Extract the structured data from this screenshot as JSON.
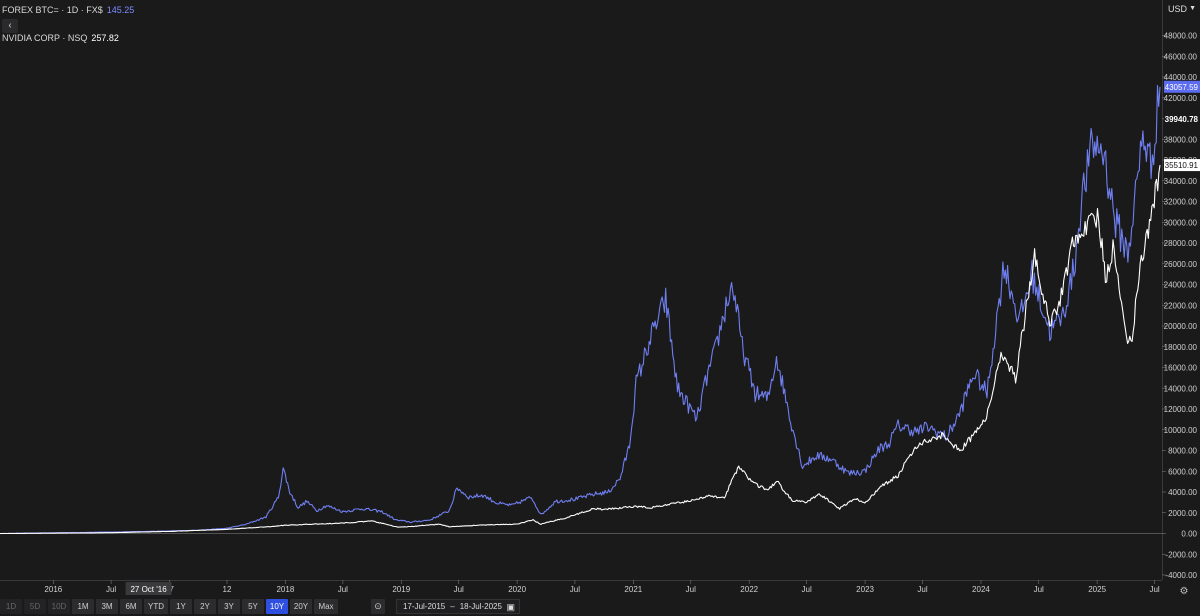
{
  "legend": {
    "btc": {
      "label": "FOREX BTC= · 1D · FX$",
      "value": "145.25"
    },
    "nvda": {
      "label": "NVIDIA CORP · NSQ",
      "value": "257.82"
    }
  },
  "collapse_icon": "‹",
  "currency": "USD",
  "toolbar": {
    "ranges": [
      "1D",
      "5D",
      "10D",
      "1M",
      "3M",
      "6M",
      "YTD",
      "1Y",
      "2Y",
      "3Y",
      "5Y",
      "10Y",
      "20Y",
      "Max"
    ],
    "disabled": [
      "1D",
      "5D",
      "10D"
    ],
    "active": "10Y",
    "date_from": "17-Jul-2015",
    "date_sep": "–",
    "date_to": "18-Jul-2025"
  },
  "colors": {
    "btc": "#6f7ff0",
    "nvda": "#ffffff",
    "background": "#1a1a1b",
    "active": "#2f4fe0"
  },
  "chart_data": {
    "type": "line",
    "ylim": [
      -4500,
      50000
    ],
    "y_ticks": [
      -4000,
      -2000,
      0,
      2000,
      4000,
      6000,
      8000,
      10000,
      12000,
      14000,
      16000,
      18000,
      20000,
      22000,
      24000,
      26000,
      28000,
      30000,
      32000,
      34000,
      36000,
      38000,
      40000,
      42000,
      44000,
      46000,
      48000
    ],
    "y_tick_labels": [
      "-4000.00",
      "-2000.00",
      "0.00",
      "2000.00",
      "4000.00",
      "6000.00",
      "8000.00",
      "10000.00",
      "12000.00",
      "14000.00",
      "16000.00",
      "18000.00",
      "20000.00",
      "22000.00",
      "24000.00",
      "26000.00",
      "28000.00",
      "30000.00",
      "32000.00",
      "34000.00",
      "36000.00",
      "38000.00",
      "40000.00",
      "42000.00",
      "44000.00",
      "46000.00",
      "48000.00"
    ],
    "x_range": [
      "2015-07-17",
      "2025-07-18"
    ],
    "x_ticks": [
      {
        "label": "2016",
        "date": "2016-01-01"
      },
      {
        "label": "Jul",
        "date": "2016-07-01"
      },
      {
        "label": "17",
        "date": "2017-01-01"
      },
      {
        "label": "12",
        "date": "2017-07-01"
      },
      {
        "label": "2018",
        "date": "2018-01-01"
      },
      {
        "label": "Jul",
        "date": "2018-07-01"
      },
      {
        "label": "2019",
        "date": "2019-01-01"
      },
      {
        "label": "Jul",
        "date": "2019-07-01"
      },
      {
        "label": "2020",
        "date": "2020-01-01"
      },
      {
        "label": "Jul",
        "date": "2020-07-01"
      },
      {
        "label": "2021",
        "date": "2021-01-01"
      },
      {
        "label": "Jul",
        "date": "2021-07-01"
      },
      {
        "label": "2022",
        "date": "2022-01-01"
      },
      {
        "label": "Jul",
        "date": "2022-07-01"
      },
      {
        "label": "2023",
        "date": "2023-01-01"
      },
      {
        "label": "Jul",
        "date": "2023-07-01"
      },
      {
        "label": "2024",
        "date": "2024-01-01"
      },
      {
        "label": "Jul",
        "date": "2024-07-01"
      },
      {
        "label": "2025",
        "date": "2025-01-01"
      },
      {
        "label": "Jul",
        "date": "2025-07-01"
      }
    ],
    "crosshair": {
      "label": "27 Oct '16",
      "date": "2016-10-27"
    },
    "price_tags": [
      {
        "value": 43057.59,
        "label": "43057.59",
        "series": "FOREX BTC="
      },
      {
        "value": 39940.78,
        "label": "39940.78",
        "series": ""
      },
      {
        "value": 35510.91,
        "label": "35510.91",
        "series": "NVIDIA CORP"
      }
    ],
    "series": [
      {
        "name": "FOREX BTC=",
        "color": "#6f7ff0",
        "points": [
          [
            "2015-07-17",
            0
          ],
          [
            "2016-01-01",
            70
          ],
          [
            "2016-07-01",
            140
          ],
          [
            "2017-01-01",
            240
          ],
          [
            "2017-04-01",
            320
          ],
          [
            "2017-07-01",
            500
          ],
          [
            "2017-09-01",
            900
          ],
          [
            "2017-11-01",
            1600
          ],
          [
            "2017-12-10",
            3500
          ],
          [
            "2017-12-25",
            6300
          ],
          [
            "2018-01-15",
            4000
          ],
          [
            "2018-02-10",
            2500
          ],
          [
            "2018-03-10",
            3100
          ],
          [
            "2018-04-10",
            2200
          ],
          [
            "2018-05-10",
            2700
          ],
          [
            "2018-07-01",
            2100
          ],
          [
            "2018-09-01",
            2400
          ],
          [
            "2018-11-01",
            2100
          ],
          [
            "2018-12-15",
            1300
          ],
          [
            "2019-02-01",
            1100
          ],
          [
            "2019-04-01",
            1300
          ],
          [
            "2019-06-01",
            2200
          ],
          [
            "2019-06-26",
            4400
          ],
          [
            "2019-08-01",
            3500
          ],
          [
            "2019-09-15",
            3700
          ],
          [
            "2019-11-01",
            2900
          ],
          [
            "2019-12-15",
            2700
          ],
          [
            "2020-02-15",
            3500
          ],
          [
            "2020-03-16",
            1800
          ],
          [
            "2020-05-01",
            3100
          ],
          [
            "2020-07-01",
            3300
          ],
          [
            "2020-09-01",
            3800
          ],
          [
            "2020-10-15",
            4000
          ],
          [
            "2020-11-20",
            5300
          ],
          [
            "2020-12-20",
            8500
          ],
          [
            "2021-01-10",
            14500
          ],
          [
            "2021-02-20",
            18500
          ],
          [
            "2021-04-13",
            22500
          ],
          [
            "2021-05-20",
            14000
          ],
          [
            "2021-07-20",
            11000
          ],
          [
            "2021-08-20",
            15000
          ],
          [
            "2021-09-15",
            17500
          ],
          [
            "2021-10-20",
            22000
          ],
          [
            "2021-11-10",
            24000
          ],
          [
            "2021-12-10",
            18000
          ],
          [
            "2022-01-20",
            13500
          ],
          [
            "2022-03-01",
            13000
          ],
          [
            "2022-03-28",
            17000
          ],
          [
            "2022-05-15",
            10500
          ],
          [
            "2022-06-18",
            6500
          ],
          [
            "2022-08-01",
            7500
          ],
          [
            "2022-09-15",
            7200
          ],
          [
            "2022-11-10",
            5800
          ],
          [
            "2022-12-31",
            6000
          ],
          [
            "2023-02-15",
            8200
          ],
          [
            "2023-03-15",
            8600
          ],
          [
            "2023-04-15",
            10400
          ],
          [
            "2023-06-15",
            9800
          ],
          [
            "2023-07-15",
            10300
          ],
          [
            "2023-09-15",
            9300
          ],
          [
            "2023-10-25",
            11500
          ],
          [
            "2023-12-10",
            15500
          ],
          [
            "2024-01-20",
            13500
          ],
          [
            "2024-03-14",
            26000
          ],
          [
            "2024-05-01",
            20500
          ],
          [
            "2024-06-10",
            25000
          ],
          [
            "2024-08-05",
            19500
          ],
          [
            "2024-09-15",
            21000
          ],
          [
            "2024-10-20",
            25500
          ],
          [
            "2024-11-12",
            32000
          ],
          [
            "2024-12-17",
            37500
          ],
          [
            "2025-01-20",
            37000
          ],
          [
            "2025-02-28",
            30000
          ],
          [
            "2025-04-08",
            27000
          ],
          [
            "2025-05-10",
            34500
          ],
          [
            "2025-05-25",
            38500
          ],
          [
            "2025-06-20",
            35500
          ],
          [
            "2025-07-18",
            43057.59
          ]
        ]
      },
      {
        "name": "NVIDIA CORP",
        "color": "#ffffff",
        "points": [
          [
            "2015-07-17",
            0
          ],
          [
            "2016-01-01",
            30
          ],
          [
            "2016-07-01",
            80
          ],
          [
            "2017-01-01",
            200
          ],
          [
            "2017-07-01",
            400
          ],
          [
            "2017-12-01",
            700
          ],
          [
            "2018-01-01",
            800
          ],
          [
            "2018-04-01",
            900
          ],
          [
            "2018-07-01",
            1000
          ],
          [
            "2018-10-01",
            1200
          ],
          [
            "2018-12-24",
            600
          ],
          [
            "2019-02-15",
            700
          ],
          [
            "2019-05-01",
            900
          ],
          [
            "2019-06-01",
            650
          ],
          [
            "2019-09-01",
            800
          ],
          [
            "2019-12-31",
            900
          ],
          [
            "2020-02-20",
            1300
          ],
          [
            "2020-03-16",
            900
          ],
          [
            "2020-06-01",
            1500
          ],
          [
            "2020-08-30",
            2400
          ],
          [
            "2020-10-01",
            2300
          ],
          [
            "2020-12-31",
            2600
          ],
          [
            "2021-03-01",
            2500
          ],
          [
            "2021-06-01",
            3000
          ],
          [
            "2021-08-30",
            3600
          ],
          [
            "2021-10-15",
            3500
          ],
          [
            "2021-11-29",
            6500
          ],
          [
            "2022-01-15",
            4800
          ],
          [
            "2022-03-01",
            4200
          ],
          [
            "2022-03-30",
            5000
          ],
          [
            "2022-05-15",
            3200
          ],
          [
            "2022-07-01",
            3000
          ],
          [
            "2022-08-10",
            3800
          ],
          [
            "2022-10-13",
            2400
          ],
          [
            "2022-11-30",
            3400
          ],
          [
            "2022-12-31",
            2900
          ],
          [
            "2023-02-15",
            4400
          ],
          [
            "2023-04-15",
            5600
          ],
          [
            "2023-05-31",
            8000
          ],
          [
            "2023-07-15",
            9000
          ],
          [
            "2023-08-31",
            9500
          ],
          [
            "2023-10-26",
            8000
          ],
          [
            "2023-12-10",
            9500
          ],
          [
            "2024-01-15",
            11000
          ],
          [
            "2024-03-08",
            17500
          ],
          [
            "2024-04-19",
            15000
          ],
          [
            "2024-06-18",
            27000
          ],
          [
            "2024-08-05",
            20000
          ],
          [
            "2024-09-10",
            23000
          ],
          [
            "2024-10-15",
            28000
          ],
          [
            "2024-11-20",
            29500
          ],
          [
            "2025-01-06",
            30500
          ],
          [
            "2025-01-27",
            24500
          ],
          [
            "2025-02-20",
            27500
          ],
          [
            "2025-04-07",
            18500
          ],
          [
            "2025-04-21",
            19000
          ],
          [
            "2025-05-20",
            26500
          ],
          [
            "2025-06-15",
            29500
          ],
          [
            "2025-07-18",
            35510.91
          ]
        ]
      }
    ]
  }
}
